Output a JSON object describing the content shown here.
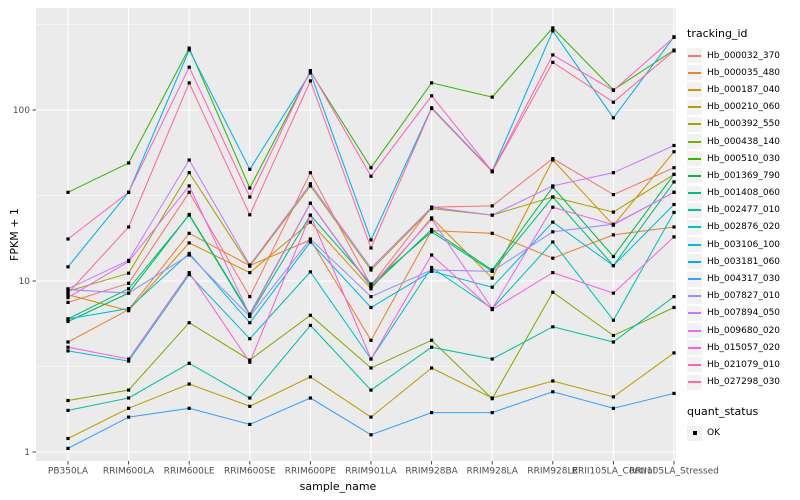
{
  "figure": {
    "panel_background": "#EBEBEB",
    "grid_color": "#FFFFFF",
    "tick_color": "#333333",
    "axis_text_color": "#4D4D4D",
    "point_color": "#000000",
    "legend_key_background": "#F2F2F2"
  },
  "axes": {
    "x_title": "sample_name",
    "y_title": "FPKM + 1",
    "y_tick_labels": [
      "1",
      "10",
      "100"
    ]
  },
  "legend": {
    "tracking_title": "tracking_id",
    "quant_title": "quant_status",
    "quant_ok_label": "OK"
  },
  "chart_data": {
    "type": "line",
    "title": "",
    "xlabel": "sample_name",
    "ylabel": "FPKM + 1",
    "y_scale": "log10",
    "y_ticks": [
      1,
      10,
      100
    ],
    "y_minor_ticks": [
      3.1623,
      31.623,
      316.23
    ],
    "ylim": [
      0.89,
      394
    ],
    "grid": true,
    "legend_position": "right",
    "marker": "black-square",
    "quant_status": "OK",
    "categories": [
      "PB350LA",
      "RRIM600LA",
      "RRIM600LE",
      "RRIM600SE",
      "RRIM600PE",
      "RRIM901LA",
      "RRIM928BA",
      "RRIM928LA",
      "RRIM928LE",
      "RRII105LA_Control",
      "RRII105LA_Stressed"
    ],
    "series": [
      {
        "name": "Hb_000032_370",
        "color": "#F8766D",
        "values": [
          7.5,
          9.7,
          33,
          8.1,
          43,
          9.4,
          27,
          27.5,
          52,
          32,
          46
        ]
      },
      {
        "name": "Hb_000035_480",
        "color": "#EA8331",
        "values": [
          4.4,
          6.8,
          19,
          12.3,
          17.4,
          4.5,
          19.7,
          19,
          13.6,
          18.6,
          20.7
        ]
      },
      {
        "name": "Hb_000187_040",
        "color": "#D89000",
        "values": [
          8.3,
          6.7,
          16.7,
          11.2,
          22.1,
          9.0,
          23.4,
          10.4,
          51,
          21.2,
          57
        ]
      },
      {
        "name": "Hb_000210_060",
        "color": "#C09B00",
        "values": [
          1.2,
          1.8,
          2.5,
          1.85,
          2.75,
          1.6,
          3.1,
          2.07,
          2.6,
          2.1,
          3.8
        ]
      },
      {
        "name": "Hb_000392_550",
        "color": "#A3A500",
        "values": [
          8.7,
          11.1,
          43,
          12.2,
          36,
          11.6,
          26.5,
          24.3,
          31,
          25.3,
          42
        ]
      },
      {
        "name": "Hb_000438_140",
        "color": "#7CAE00",
        "values": [
          2.0,
          2.3,
          5.7,
          3.45,
          6.3,
          3.1,
          4.5,
          2.05,
          8.6,
          4.8,
          7.0
        ]
      },
      {
        "name": "Hb_000510_030",
        "color": "#39B600",
        "values": [
          33,
          49,
          230,
          35,
          168,
          46,
          144,
          119,
          302,
          131,
          224
        ]
      },
      {
        "name": "Hb_001369_790",
        "color": "#00BB4E",
        "values": [
          5.8,
          8.5,
          24.5,
          6.4,
          28.5,
          9.2,
          20,
          11.6,
          35.4,
          13.9,
          42
        ]
      },
      {
        "name": "Hb_001408_060",
        "color": "#00BF7D",
        "values": [
          6.0,
          9.0,
          24.3,
          6.3,
          24.3,
          9.6,
          19.4,
          11.4,
          31,
          12.3,
          38
        ]
      },
      {
        "name": "Hb_002477_010",
        "color": "#00C1A3",
        "values": [
          1.75,
          2.07,
          3.3,
          2.07,
          5.5,
          2.3,
          4.1,
          3.5,
          5.4,
          4.4,
          8.1
        ]
      },
      {
        "name": "Hb_002876_020",
        "color": "#00BFC4",
        "values": [
          3.9,
          3.4,
          10.9,
          4.6,
          11.3,
          3.5,
          12,
          6.9,
          16.9,
          5.9,
          25.2
        ]
      },
      {
        "name": "Hb_003106_100",
        "color": "#00BAE0",
        "values": [
          6.0,
          6.9,
          14.5,
          5.7,
          16.9,
          7.0,
          11.4,
          9.2,
          22.1,
          12.3,
          28
        ]
      },
      {
        "name": "Hb_003181_060",
        "color": "#00B0F6",
        "values": [
          12.1,
          33,
          225,
          45,
          165,
          17.4,
          103,
          44,
          290,
          90,
          268
        ]
      },
      {
        "name": "Hb_004317_030",
        "color": "#35A2FF",
        "values": [
          1.05,
          1.6,
          1.8,
          1.45,
          2.07,
          1.26,
          1.7,
          1.7,
          2.25,
          1.8,
          2.2
        ]
      },
      {
        "name": "Hb_007827_010",
        "color": "#9590FF",
        "values": [
          8.9,
          8.5,
          14.2,
          6.2,
          17.6,
          8.1,
          11.6,
          11.4,
          19.4,
          21.5,
          33
        ]
      },
      {
        "name": "Hb_007894_050",
        "color": "#C77CFF",
        "values": [
          9.0,
          13.2,
          51,
          12.4,
          37,
          11.9,
          27,
          24.3,
          36,
          43,
          62
        ]
      },
      {
        "name": "Hb_009680_020",
        "color": "#E76BF3",
        "values": [
          8.0,
          13.0,
          36,
          6.3,
          28.5,
          9.3,
          23,
          6.9,
          27,
          21.3,
          33
        ]
      },
      {
        "name": "Hb_015057_020",
        "color": "#FA62DB",
        "values": [
          4.1,
          3.5,
          11.2,
          3.35,
          24.3,
          3.5,
          14.2,
          6.8,
          11.2,
          8.5,
          18.1
        ]
      },
      {
        "name": "Hb_021079_010",
        "color": "#FF62BC",
        "values": [
          17.6,
          33,
          178,
          31,
          170,
          41,
          121,
          43.8,
          210,
          130,
          266
        ]
      },
      {
        "name": "Hb_027298_030",
        "color": "#FF6A98",
        "values": [
          8.5,
          20.7,
          144,
          24.4,
          148,
          15.6,
          102,
          43.5,
          190,
          111,
          222
        ]
      }
    ]
  }
}
